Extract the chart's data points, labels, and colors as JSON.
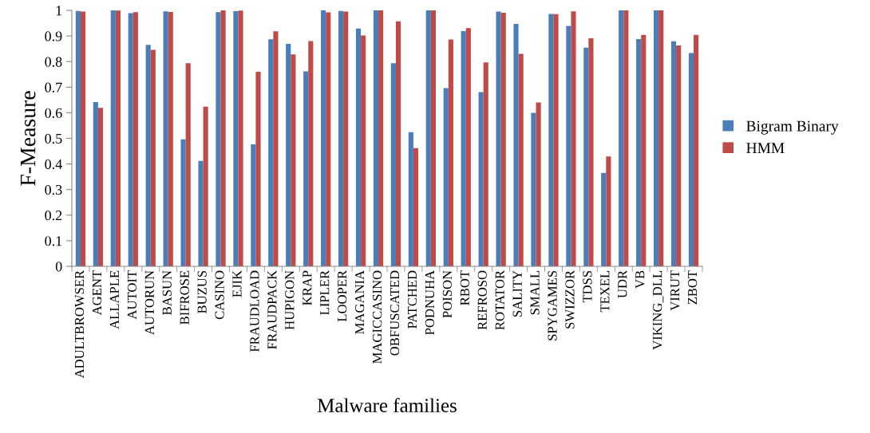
{
  "chart_data": {
    "type": "bar",
    "xlabel": "Malware families",
    "ylabel": "F-Measure",
    "categories": [
      "ADULTBROWSER",
      "AGENT",
      "ALLAPLE",
      "AUTOIT",
      "AUTORUN",
      "BASUN",
      "BIFROSE",
      "BUZUS",
      "CASINO",
      "EJIK",
      "FRAUDLOAD",
      "FRAUDPACK",
      "HUPIGON",
      "KRAP",
      "LIPLER",
      "LOOPER",
      "MAGANIA",
      "MAGICCASINO",
      "OBFUSCATED",
      "PATCHED",
      "PODNUHA",
      "POISON",
      "RBOT",
      "REFROSO",
      "ROTATOR",
      "SALITY",
      "SMALL",
      "SPYGAMES",
      "SWIZZOR",
      "TDSS",
      "TEXEL",
      "UDR",
      "VB",
      "VIKING_DLL",
      "VIRUT",
      "ZBOT"
    ],
    "series": [
      {
        "name": "Bigram Binary",
        "color": "#4a7ebb",
        "values": [
          0.998,
          0.642,
          1.0,
          0.989,
          0.865,
          0.996,
          0.496,
          0.412,
          0.993,
          0.997,
          0.477,
          0.887,
          0.869,
          0.762,
          1.0,
          0.998,
          0.929,
          1.0,
          0.794,
          0.524,
          1.0,
          0.696,
          0.919,
          0.681,
          0.995,
          0.947,
          0.6,
          0.986,
          0.939,
          0.854,
          0.365,
          1.0,
          0.888,
          1.0,
          0.879,
          0.833
        ]
      },
      {
        "name": "HMM",
        "color": "#be4b48",
        "values": [
          0.995,
          0.619,
          0.999,
          0.993,
          0.846,
          0.994,
          0.794,
          0.624,
          1.0,
          0.999,
          0.76,
          0.918,
          0.828,
          0.88,
          0.992,
          0.995,
          0.902,
          1.0,
          0.957,
          0.462,
          1.0,
          0.886,
          0.931,
          0.797,
          0.991,
          0.83,
          0.64,
          0.985,
          0.996,
          0.891,
          0.429,
          1.0,
          0.904,
          1.0,
          0.863,
          0.904
        ]
      }
    ],
    "ylim": [
      0,
      1
    ],
    "yticks": [
      0,
      0.1,
      0.2,
      0.3,
      0.4,
      0.5,
      0.6,
      0.7,
      0.8,
      0.9,
      1
    ],
    "grid": false,
    "legend": "right"
  }
}
